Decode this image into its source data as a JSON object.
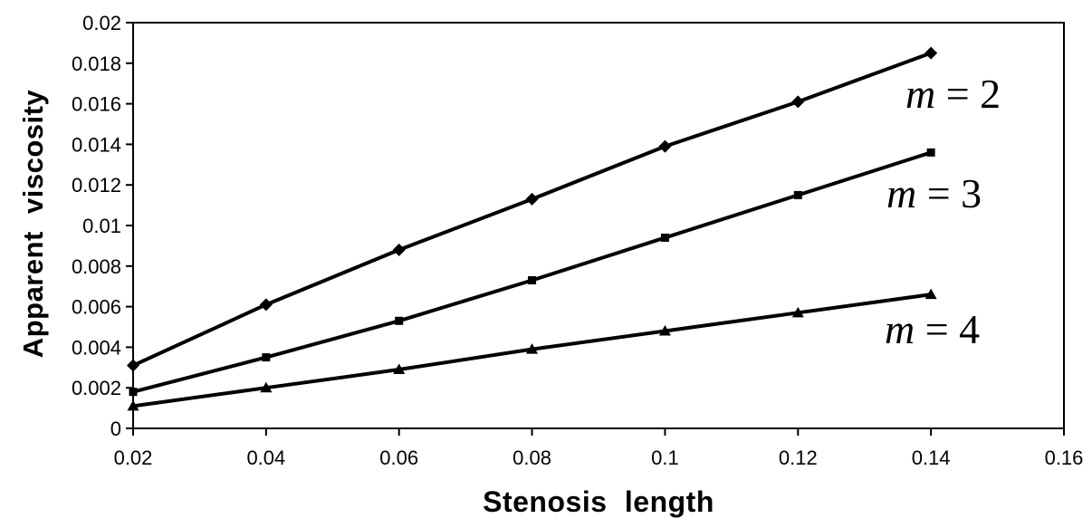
{
  "chart_data": {
    "type": "line",
    "title": "",
    "xlabel": "Stenosis length",
    "ylabel": "Apparent viscosity",
    "xlim": [
      0.02,
      0.16
    ],
    "ylim": [
      0,
      0.02
    ],
    "grid": false,
    "legend_position": "inline-right-annotations",
    "background_color": "#ffffff",
    "line_color": "#000000",
    "x": [
      0.02,
      0.04,
      0.06,
      0.08,
      0.1,
      0.12,
      0.14
    ],
    "x_tick_labels": [
      {
        "v": 0.02,
        "label": "0.02"
      },
      {
        "v": 0.04,
        "label": "0.04"
      },
      {
        "v": 0.06,
        "label": "0.06"
      },
      {
        "v": 0.08,
        "label": "0.08"
      },
      {
        "v": 0.1,
        "label": "0.1"
      },
      {
        "v": 0.12,
        "label": "0.12"
      },
      {
        "v": 0.14,
        "label": "0.14"
      },
      {
        "v": 0.16,
        "label": "0.16"
      }
    ],
    "y_tick_labels": [
      {
        "v": 0,
        "label": "0"
      },
      {
        "v": 0.002,
        "label": "0.002"
      },
      {
        "v": 0.004,
        "label": "0.004"
      },
      {
        "v": 0.006,
        "label": "0.006"
      },
      {
        "v": 0.008,
        "label": "0.008"
      },
      {
        "v": 0.01,
        "label": "0.01"
      },
      {
        "v": 0.012,
        "label": "0.012"
      },
      {
        "v": 0.014,
        "label": "0.014"
      },
      {
        "v": 0.016,
        "label": "0.016"
      },
      {
        "v": 0.018,
        "label": "0.018"
      },
      {
        "v": 0.02,
        "label": "0.02"
      }
    ],
    "series": [
      {
        "id": "m2",
        "name": "m = 2",
        "marker": "diamond",
        "label_var": "m",
        "label_rest": " = 2",
        "values": [
          0.0031,
          0.0061,
          0.0088,
          0.0113,
          0.0139,
          0.0161,
          0.0185
        ]
      },
      {
        "id": "m3",
        "name": "m = 3",
        "marker": "square",
        "label_var": "m",
        "label_rest": " = 3",
        "values": [
          0.0018,
          0.0035,
          0.0053,
          0.0073,
          0.0094,
          0.0115,
          0.0136
        ]
      },
      {
        "id": "m4",
        "name": "m = 4",
        "marker": "triangle",
        "label_var": "m",
        "label_rest": " = 4",
        "values": [
          0.0011,
          0.002,
          0.0029,
          0.0039,
          0.0048,
          0.0057,
          0.0066
        ]
      }
    ]
  }
}
